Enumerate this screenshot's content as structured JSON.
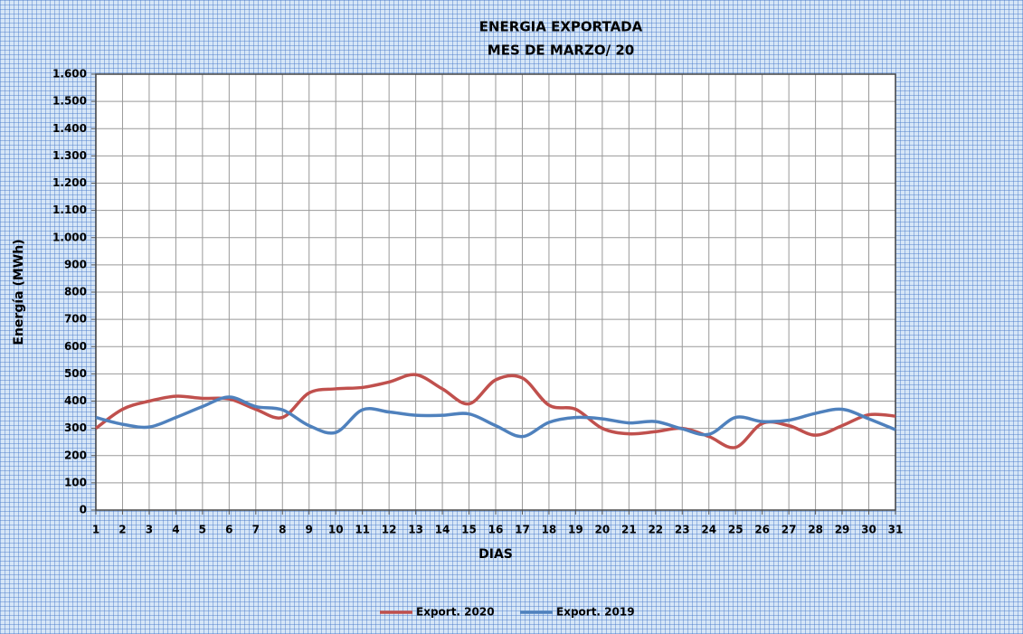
{
  "chart_data": {
    "type": "line",
    "title": "ENERGIA EXPORTADA",
    "subtitle": "MES DE MARZO/ 20",
    "x_label": "DIAS",
    "y_label": "Energía (MWh)",
    "x": [
      1,
      2,
      3,
      4,
      5,
      6,
      7,
      8,
      9,
      10,
      11,
      12,
      13,
      14,
      15,
      16,
      17,
      18,
      19,
      20,
      21,
      22,
      23,
      24,
      25,
      26,
      27,
      28,
      29,
      30,
      31
    ],
    "xlim": [
      1,
      31
    ],
    "xticks": [
      1,
      2,
      3,
      4,
      5,
      6,
      7,
      8,
      9,
      10,
      11,
      12,
      13,
      14,
      15,
      16,
      17,
      18,
      19,
      20,
      21,
      22,
      23,
      24,
      25,
      26,
      27,
      28,
      29,
      30,
      31
    ],
    "ylim": [
      0,
      1600
    ],
    "yticks": [
      0,
      100,
      200,
      300,
      400,
      500,
      600,
      700,
      800,
      900,
      {
        "value": 1000,
        "label": "1.000"
      },
      {
        "value": 1100,
        "label": "1.100"
      },
      {
        "value": 1200,
        "label": "1.200"
      },
      {
        "value": 1300,
        "label": "1.300"
      },
      {
        "value": 1400,
        "label": "1.400"
      },
      {
        "value": 1500,
        "label": "1.500"
      },
      {
        "value": 1600,
        "label": "1.600"
      }
    ],
    "grid": true,
    "legend": "bottom",
    "series": [
      {
        "name": "Export. 2020",
        "color": "#c0504d",
        "values": [
          300,
          370,
          400,
          418,
          410,
          408,
          370,
          340,
          430,
          445,
          450,
          470,
          497,
          445,
          390,
          478,
          485,
          385,
          370,
          300,
          280,
          288,
          300,
          270,
          230,
          318,
          310,
          275,
          310,
          350,
          345
        ]
      },
      {
        "name": "Export. 2019",
        "color": "#4f81bd",
        "values": [
          340,
          315,
          305,
          340,
          380,
          415,
          380,
          368,
          310,
          285,
          368,
          360,
          348,
          348,
          353,
          310,
          270,
          322,
          340,
          335,
          320,
          325,
          298,
          278,
          340,
          325,
          330,
          355,
          370,
          335,
          295
        ]
      }
    ]
  }
}
